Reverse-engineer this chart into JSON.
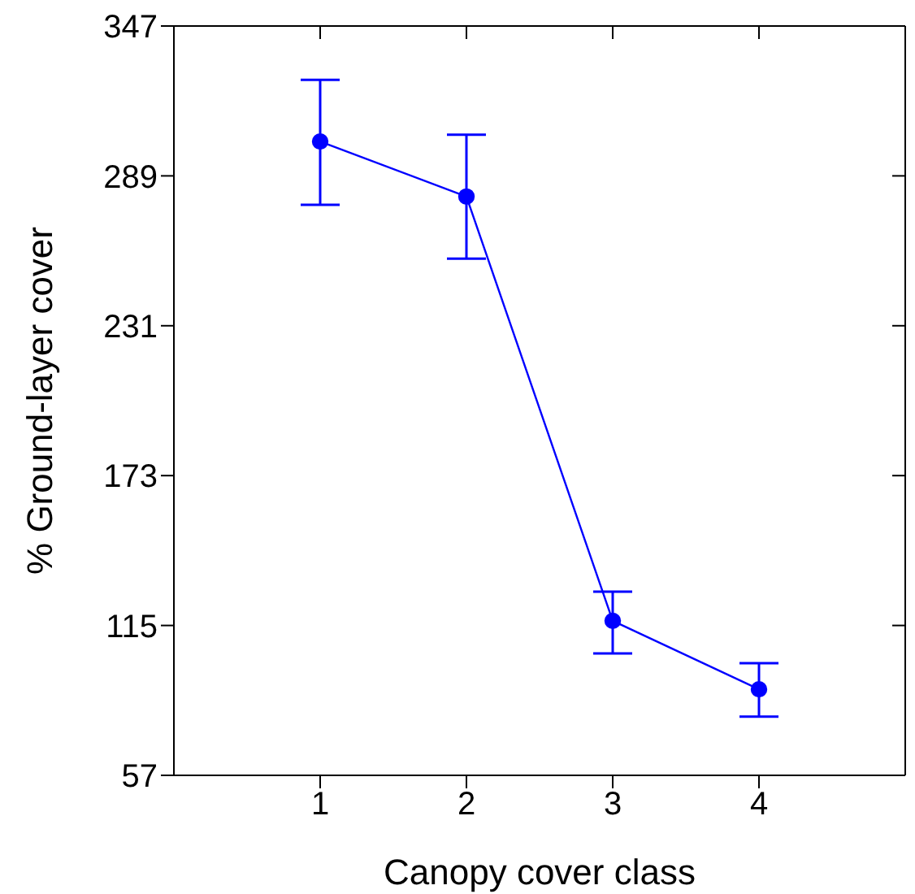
{
  "chart_data": {
    "type": "line",
    "xlabel": "Canopy cover class",
    "ylabel": "% Ground-layer cover",
    "x": [
      1,
      2,
      3,
      4
    ],
    "series": [
      {
        "color": "#0000ff",
        "values": [
          302.3,
          281,
          116.8,
          90.3
        ],
        "errors": [
          [
            277.8,
            326.2
          ],
          [
            257,
            304.9
          ],
          [
            104.2,
            128.1
          ],
          [
            79.7,
            100.4
          ]
        ]
      }
    ],
    "xlim": [
      0,
      5
    ],
    "xticks": [
      1,
      2,
      3,
      4
    ],
    "ylim": [
      57,
      347
    ],
    "yticks": [
      57,
      115,
      173,
      231,
      289,
      347
    ],
    "marker": "circle",
    "line_style": "solid",
    "grid": false,
    "legend": false
  }
}
